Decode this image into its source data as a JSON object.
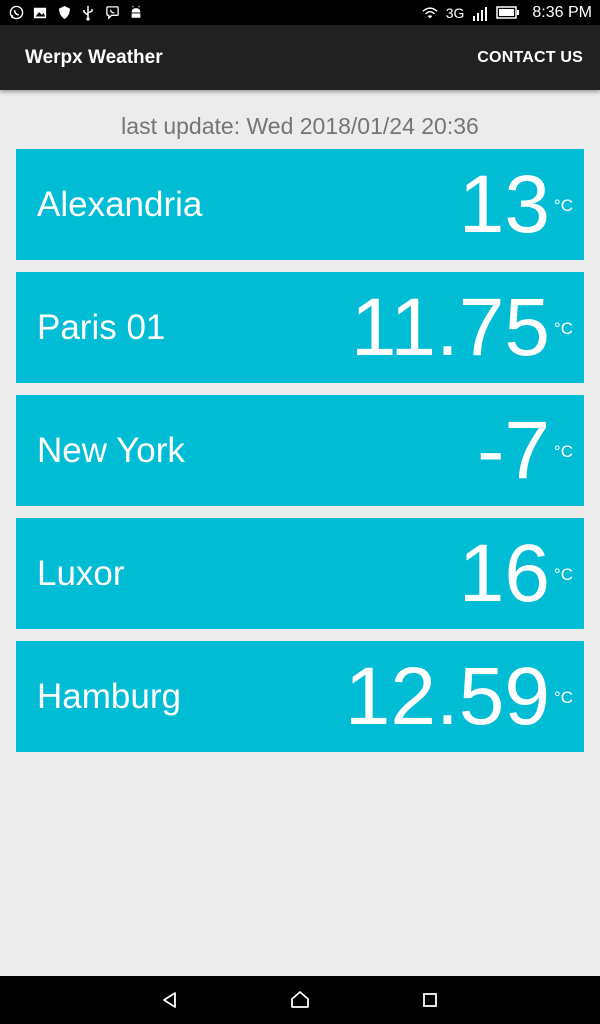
{
  "status_bar": {
    "time": "8:36 PM",
    "network": "3G",
    "icons_left": [
      "whatsapp-icon",
      "image-icon",
      "shield-icon",
      "usb-icon",
      "viber-icon",
      "android-icon"
    ],
    "icons_right": [
      "wifi-icon",
      "signal-icon",
      "battery-icon"
    ]
  },
  "app_bar": {
    "title": "Werpx Weather",
    "contact_label": "CONTACT US"
  },
  "last_update": "last update: Wed 2018/01/24 20:36",
  "cities": [
    {
      "name": "Alexandria",
      "temp": "13",
      "unit": "°C"
    },
    {
      "name": "Paris 01",
      "temp": "11.75",
      "unit": "°C"
    },
    {
      "name": "New York",
      "temp": "-7",
      "unit": "°C"
    },
    {
      "name": "Luxor",
      "temp": "16",
      "unit": "°C"
    },
    {
      "name": "Hamburg",
      "temp": "12.59",
      "unit": "°C"
    }
  ],
  "colors": {
    "card": "#00bcd4",
    "app_bar": "#212121",
    "background": "#ececec"
  },
  "nav_bar": [
    "back-icon",
    "home-icon",
    "recents-icon"
  ]
}
